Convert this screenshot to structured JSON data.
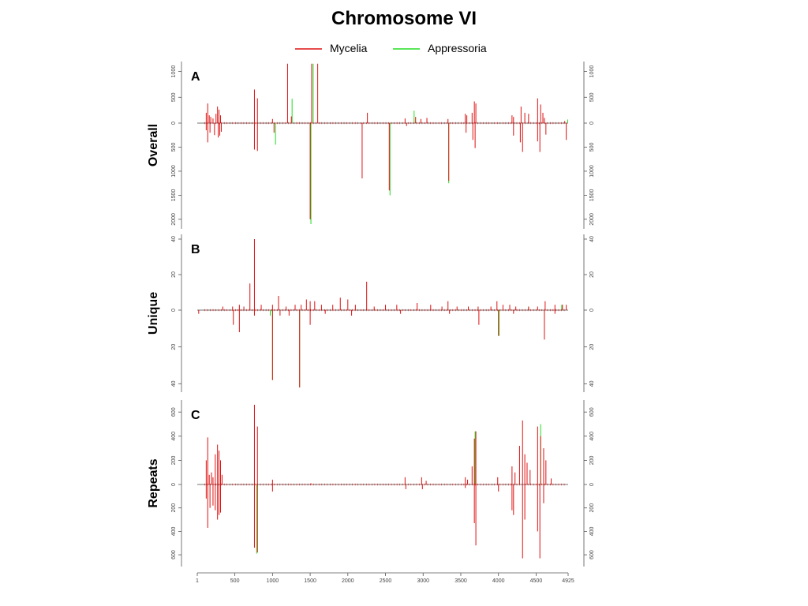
{
  "title": "Chromosome VI",
  "legend": [
    {
      "label": "Mycelia",
      "color": "#dd1111"
    },
    {
      "label": "Appressoria",
      "color": "#22dd22"
    }
  ],
  "colors": {
    "mycelia": "#dd1111",
    "appressoria": "#22dd22",
    "axis": "#555555"
  },
  "chart_data": [
    {
      "panel_label": "A",
      "row_label": "Overall",
      "type": "bar",
      "y_upper_ticks": [
        1000,
        500,
        0
      ],
      "y_lower_ticks": [
        500,
        1000,
        1500,
        2000
      ],
      "y_right_upper_ticks": [
        1000,
        500,
        0
      ],
      "y_right_lower_ticks": [
        500,
        1000,
        1500,
        2000
      ],
      "ylim_up": 1100,
      "ylim_down": 2100,
      "mycelia_up": [
        [
          120,
          200
        ],
        [
          140,
          380
        ],
        [
          160,
          150
        ],
        [
          180,
          120
        ],
        [
          210,
          90
        ],
        [
          250,
          180
        ],
        [
          270,
          320
        ],
        [
          290,
          260
        ],
        [
          310,
          150
        ],
        [
          760,
          650
        ],
        [
          800,
          480
        ],
        [
          1000,
          80
        ],
        [
          1200,
          1150
        ],
        [
          1250,
          130
        ],
        [
          1520,
          1150
        ],
        [
          1600,
          1150
        ],
        [
          2260,
          200
        ],
        [
          2760,
          90
        ],
        [
          2900,
          120
        ],
        [
          2970,
          80
        ],
        [
          3050,
          100
        ],
        [
          3330,
          80
        ],
        [
          3560,
          180
        ],
        [
          3580,
          150
        ],
        [
          3650,
          200
        ],
        [
          3680,
          420
        ],
        [
          3700,
          380
        ],
        [
          4180,
          150
        ],
        [
          4200,
          120
        ],
        [
          4300,
          320
        ],
        [
          4350,
          200
        ],
        [
          4400,
          180
        ],
        [
          4520,
          480
        ],
        [
          4560,
          360
        ],
        [
          4590,
          200
        ],
        [
          4610,
          100
        ],
        [
          4880,
          40
        ]
      ],
      "mycelia_down": [
        [
          120,
          150
        ],
        [
          140,
          400
        ],
        [
          170,
          200
        ],
        [
          230,
          250
        ],
        [
          280,
          300
        ],
        [
          300,
          260
        ],
        [
          320,
          180
        ],
        [
          760,
          550
        ],
        [
          800,
          580
        ],
        [
          1020,
          200
        ],
        [
          1500,
          2000
        ],
        [
          2190,
          1150
        ],
        [
          2550,
          1400
        ],
        [
          2780,
          60
        ],
        [
          3340,
          1200
        ],
        [
          3570,
          200
        ],
        [
          3660,
          350
        ],
        [
          3690,
          520
        ],
        [
          4200,
          260
        ],
        [
          4290,
          400
        ],
        [
          4320,
          600
        ],
        [
          4520,
          380
        ],
        [
          4550,
          600
        ],
        [
          4630,
          240
        ],
        [
          4900,
          350
        ]
      ],
      "appress_up": [
        [
          1260,
          470
        ],
        [
          1540,
          1150
        ],
        [
          2880,
          240
        ],
        [
          4920,
          70
        ]
      ],
      "appress_down": [
        [
          1040,
          450
        ],
        [
          1510,
          2100
        ],
        [
          2560,
          1500
        ],
        [
          3340,
          1250
        ]
      ]
    },
    {
      "panel_label": "B",
      "row_label": "Unique",
      "type": "bar",
      "y_upper_ticks": [
        40,
        20,
        0
      ],
      "y_lower_ticks": [
        20,
        40
      ],
      "y_right_upper_ticks": [
        40,
        20,
        0
      ],
      "y_right_lower_ticks": [
        20,
        40
      ],
      "ylim_up": 40,
      "ylim_down": 42,
      "mycelia_up": [
        [
          340,
          2
        ],
        [
          470,
          2
        ],
        [
          560,
          3
        ],
        [
          620,
          2
        ],
        [
          700,
          15
        ],
        [
          760,
          40
        ],
        [
          850,
          3
        ],
        [
          1000,
          3
        ],
        [
          1080,
          8
        ],
        [
          1180,
          2
        ],
        [
          1300,
          3
        ],
        [
          1380,
          3
        ],
        [
          1450,
          6
        ],
        [
          1500,
          5
        ],
        [
          1560,
          5
        ],
        [
          1650,
          3
        ],
        [
          1800,
          3
        ],
        [
          1900,
          7
        ],
        [
          2000,
          6
        ],
        [
          2100,
          3
        ],
        [
          2250,
          16
        ],
        [
          2350,
          2
        ],
        [
          2500,
          3
        ],
        [
          2650,
          3
        ],
        [
          2920,
          4
        ],
        [
          3100,
          3
        ],
        [
          3250,
          2
        ],
        [
          3330,
          5
        ],
        [
          3450,
          2
        ],
        [
          3600,
          2
        ],
        [
          3730,
          2
        ],
        [
          3900,
          2
        ],
        [
          3980,
          5
        ],
        [
          4060,
          3
        ],
        [
          4150,
          3
        ],
        [
          4230,
          2
        ],
        [
          4400,
          2
        ],
        [
          4520,
          2
        ],
        [
          4620,
          5
        ],
        [
          4750,
          3
        ],
        [
          4850,
          3
        ],
        [
          4900,
          3
        ]
      ],
      "mycelia_down": [
        [
          20,
          2
        ],
        [
          480,
          8
        ],
        [
          560,
          12
        ],
        [
          760,
          3
        ],
        [
          1000,
          38
        ],
        [
          1100,
          3
        ],
        [
          1220,
          3
        ],
        [
          1360,
          42
        ],
        [
          1500,
          8
        ],
        [
          1700,
          2
        ],
        [
          2050,
          3
        ],
        [
          2700,
          2
        ],
        [
          3350,
          2
        ],
        [
          3740,
          8
        ],
        [
          4000,
          14
        ],
        [
          4200,
          2
        ],
        [
          4610,
          16
        ],
        [
          4750,
          2
        ]
      ],
      "appress_up": [
        [
          4400,
          2
        ],
        [
          4840,
          3
        ]
      ],
      "appress_down": [
        [
          1000,
          38
        ],
        [
          1360,
          42
        ],
        [
          970,
          3
        ],
        [
          4010,
          14
        ]
      ]
    },
    {
      "panel_label": "C",
      "row_label": "Repeats",
      "type": "bar",
      "y_upper_ticks": [
        600,
        400,
        200,
        0
      ],
      "y_lower_ticks": [
        200,
        400,
        600
      ],
      "y_right_upper_ticks": [
        600,
        400,
        200,
        0
      ],
      "y_right_lower_ticks": [
        200,
        400,
        600
      ],
      "ylim_up": 660,
      "ylim_down": 660,
      "mycelia_up": [
        [
          120,
          200
        ],
        [
          140,
          390
        ],
        [
          160,
          80
        ],
        [
          190,
          100
        ],
        [
          210,
          60
        ],
        [
          240,
          250
        ],
        [
          270,
          330
        ],
        [
          290,
          280
        ],
        [
          310,
          200
        ],
        [
          330,
          80
        ],
        [
          760,
          660
        ],
        [
          800,
          480
        ],
        [
          1000,
          40
        ],
        [
          1510,
          10
        ],
        [
          2760,
          60
        ],
        [
          2980,
          60
        ],
        [
          3040,
          30
        ],
        [
          3560,
          60
        ],
        [
          3590,
          40
        ],
        [
          3650,
          150
        ],
        [
          3680,
          380
        ],
        [
          3700,
          440
        ],
        [
          3990,
          60
        ],
        [
          4180,
          150
        ],
        [
          4220,
          100
        ],
        [
          4280,
          320
        ],
        [
          4320,
          530
        ],
        [
          4350,
          250
        ],
        [
          4380,
          180
        ],
        [
          4420,
          120
        ],
        [
          4520,
          480
        ],
        [
          4560,
          400
        ],
        [
          4600,
          300
        ],
        [
          4630,
          200
        ],
        [
          4700,
          50
        ]
      ],
      "mycelia_down": [
        [
          120,
          120
        ],
        [
          140,
          370
        ],
        [
          170,
          200
        ],
        [
          210,
          180
        ],
        [
          240,
          220
        ],
        [
          270,
          300
        ],
        [
          290,
          260
        ],
        [
          310,
          240
        ],
        [
          760,
          540
        ],
        [
          800,
          580
        ],
        [
          1000,
          60
        ],
        [
          2770,
          40
        ],
        [
          2990,
          40
        ],
        [
          3560,
          30
        ],
        [
          3680,
          330
        ],
        [
          3700,
          520
        ],
        [
          4000,
          60
        ],
        [
          4180,
          220
        ],
        [
          4200,
          260
        ],
        [
          4320,
          630
        ],
        [
          4350,
          300
        ],
        [
          4520,
          400
        ],
        [
          4550,
          630
        ],
        [
          4600,
          160
        ]
      ],
      "appress_up": [
        [
          3690,
          440
        ],
        [
          4560,
          500
        ]
      ],
      "appress_down": [
        [
          790,
          590
        ]
      ]
    }
  ],
  "x_axis": {
    "ticks": [
      1,
      500,
      1000,
      1500,
      2000,
      2500,
      3000,
      3500,
      4000,
      4500,
      4925
    ],
    "xlim": [
      1,
      4925
    ]
  }
}
